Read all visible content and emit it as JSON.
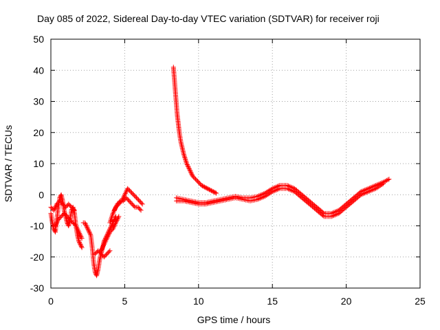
{
  "chart_data": {
    "type": "scatter",
    "title": "Day 085 of 2022, Sidereal Day-to-day VTEC variation (SDTVAR) for receiver roji",
    "xlabel": "GPS time / hours",
    "ylabel": "SDTVAR / TECUs",
    "xlim": [
      0,
      25
    ],
    "ylim": [
      -30,
      50
    ],
    "xticks": [
      0,
      5,
      10,
      15,
      20,
      25
    ],
    "yticks": [
      -30,
      -20,
      -10,
      0,
      10,
      20,
      30,
      40,
      50
    ],
    "grid": true,
    "marker": "+",
    "series": [
      {
        "name": "SDTVAR",
        "color": "#ff0000",
        "segments": [
          {
            "x": [
              0.0,
              0.1,
              0.2,
              0.3,
              0.4,
              0.5,
              0.6,
              0.7,
              0.8,
              0.9,
              1.0,
              1.1,
              1.2,
              1.3,
              1.4,
              1.5,
              1.6,
              1.7,
              1.8,
              1.9,
              2.0,
              2.1
            ],
            "y": [
              -6,
              -9,
              -11,
              -12,
              -8,
              -4,
              -1,
              0,
              -2,
              -5,
              -7,
              -9,
              -10,
              -8,
              -5,
              -4,
              -6,
              -10,
              -13,
              -15,
              -16,
              -17
            ]
          },
          {
            "x": [
              0.0,
              0.2,
              0.4,
              0.6,
              0.8,
              1.0,
              1.2,
              1.4,
              1.6
            ],
            "y": [
              -4,
              -5,
              -3,
              -2,
              -3,
              -4,
              -3,
              -4,
              -5
            ]
          },
          {
            "x": [
              0.3,
              0.5,
              0.7,
              0.9,
              1.1,
              1.3,
              1.5,
              1.7,
              1.9,
              2.1
            ],
            "y": [
              -10,
              -8,
              -7,
              -6,
              -7,
              -8,
              -9,
              -10,
              -12,
              -14
            ]
          },
          {
            "x": [
              2.2,
              2.3,
              2.4,
              2.5,
              2.6,
              2.7,
              2.8,
              2.9,
              3.0,
              3.1,
              3.2,
              3.3,
              3.4,
              3.5,
              3.6,
              3.7,
              3.8,
              3.9,
              4.0,
              4.1,
              4.2,
              4.3,
              4.4
            ],
            "y": [
              -9,
              -9,
              -10,
              -11,
              -12,
              -13,
              -17,
              -22,
              -25,
              -26,
              -24,
              -21,
              -19,
              -17,
              -15,
              -14,
              -13,
              -12,
              -11,
              -10,
              -9,
              -8,
              -7
            ]
          },
          {
            "x": [
              3.0,
              3.2,
              3.4,
              3.6,
              3.8,
              4.0
            ],
            "y": [
              -19,
              -18,
              -19,
              -20,
              -19,
              -18
            ]
          },
          {
            "x": [
              3.4,
              3.6,
              3.8,
              4.0,
              4.2,
              4.4,
              4.6
            ],
            "y": [
              -18,
              -16,
              -14,
              -12,
              -11,
              -9,
              -7
            ]
          },
          {
            "x": [
              4.0,
              4.2,
              4.4,
              4.6,
              4.8,
              5.0,
              5.2,
              5.4,
              5.6,
              5.8,
              6.0,
              6.2
            ],
            "y": [
              -9,
              -6,
              -4,
              -3,
              -2,
              0,
              2,
              1,
              0,
              -1,
              -2,
              -3
            ]
          },
          {
            "x": [
              4.3,
              4.5,
              4.7,
              4.9,
              5.1,
              5.3,
              5.5,
              5.7,
              5.9,
              6.1
            ],
            "y": [
              -5,
              -3,
              -2,
              -2,
              -1,
              -2,
              -3,
              -4,
              -4,
              -5
            ]
          },
          {
            "x": [
              8.3,
              8.35,
              8.4,
              8.45,
              8.5,
              8.55,
              8.6,
              8.65,
              8.7,
              8.8,
              8.9,
              9.0,
              9.1,
              9.2,
              9.3,
              9.4,
              9.5,
              9.6,
              9.8,
              10.0,
              10.2,
              10.4,
              10.6,
              10.8,
              11.0,
              11.2
            ],
            "y": [
              41,
              38,
              35,
              32,
              29,
              26,
              24,
              22,
              20,
              17,
              15,
              13,
              11.5,
              10,
              9,
              8,
              7,
              6,
              5,
              4,
              3,
              2.5,
              2,
              1.5,
              1,
              0.5
            ]
          },
          {
            "x": [
              8.5,
              9.0,
              9.5,
              10.0,
              10.5,
              11.0,
              11.5,
              12.0,
              12.5,
              13.0,
              13.5,
              14.0,
              14.5,
              15.0,
              15.5,
              16.0,
              16.5,
              17.0,
              17.5,
              18.0,
              18.5,
              19.0,
              19.5,
              20.0,
              20.5,
              21.0,
              21.5,
              22.0,
              22.5,
              22.9
            ],
            "y": [
              -1,
              -1.5,
              -2,
              -2.5,
              -2.5,
              -2,
              -1.5,
              -1,
              -0.5,
              -1,
              -1,
              -0.5,
              0.5,
              2,
              3,
              3,
              2,
              0,
              -2,
              -4,
              -6,
              -6,
              -5,
              -3,
              -1,
              1,
              2,
              3,
              4,
              5
            ]
          },
          {
            "x": [
              8.5,
              9.0,
              9.5,
              10.0,
              10.5,
              11.0,
              11.5,
              12.0,
              12.5,
              13.0,
              13.5,
              14.0,
              14.5,
              15.0,
              15.5,
              16.0,
              16.5,
              17.0,
              17.5,
              18.0,
              18.5,
              19.0,
              19.5,
              20.0,
              20.5,
              21.0,
              21.5,
              22.0,
              22.5
            ],
            "y": [
              -2,
              -2,
              -2.5,
              -3,
              -3,
              -2.5,
              -2,
              -1.5,
              -1,
              -1.5,
              -2,
              -1.5,
              -0.5,
              1,
              2,
              2,
              1,
              -1,
              -3,
              -5,
              -7,
              -7,
              -6,
              -4,
              -2,
              0,
              1,
              2,
              3.5
            ]
          }
        ]
      }
    ]
  }
}
